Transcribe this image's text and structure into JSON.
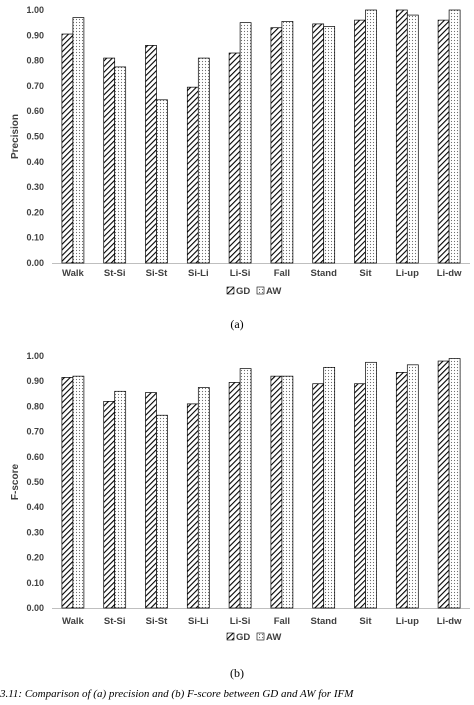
{
  "chart_data": [
    {
      "type": "bar",
      "panel_label": "(a)",
      "ylabel": "Precision",
      "ylim": [
        0,
        1
      ],
      "yticks": [
        "0.00",
        "0.10",
        "0.20",
        "0.30",
        "0.40",
        "0.50",
        "0.60",
        "0.70",
        "0.80",
        "0.90",
        "1.00"
      ],
      "categories": [
        "Walk",
        "St-Si",
        "Si-St",
        "Si-Li",
        "Li-Si",
        "Fall",
        "Stand",
        "Sit",
        "Li-up",
        "Li-dw"
      ],
      "series": [
        {
          "name": "GD",
          "values": [
            0.905,
            0.81,
            0.86,
            0.695,
            0.83,
            0.93,
            0.945,
            0.96,
            1.0,
            0.96
          ]
        },
        {
          "name": "AW",
          "values": [
            0.97,
            0.775,
            0.645,
            0.81,
            0.95,
            0.955,
            0.935,
            1.0,
            0.98,
            1.0
          ]
        }
      ],
      "legend": [
        "GD",
        "AW"
      ],
      "legend_position": "bottom",
      "grid": false
    },
    {
      "type": "bar",
      "panel_label": "(b)",
      "ylabel": "F-score",
      "ylim": [
        0,
        1
      ],
      "yticks": [
        "0.00",
        "0.10",
        "0.20",
        "0.30",
        "0.40",
        "0.50",
        "0.60",
        "0.70",
        "0.80",
        "0.90",
        "1.00"
      ],
      "categories": [
        "Walk",
        "St-Si",
        "Si-St",
        "Si-Li",
        "Li-Si",
        "Fall",
        "Stand",
        "Sit",
        "Li-up",
        "Li-dw"
      ],
      "series": [
        {
          "name": "GD",
          "values": [
            0.915,
            0.82,
            0.855,
            0.81,
            0.895,
            0.92,
            0.89,
            0.89,
            0.935,
            0.98
          ]
        },
        {
          "name": "AW",
          "values": [
            0.92,
            0.86,
            0.765,
            0.875,
            0.95,
            0.92,
            0.955,
            0.975,
            0.965,
            0.99
          ]
        }
      ],
      "legend": [
        "GD",
        "AW"
      ],
      "legend_position": "bottom",
      "grid": false
    }
  ],
  "caption": "3.11: Comparison of (a) precision and (b) F-score between GD and AW for IFM"
}
